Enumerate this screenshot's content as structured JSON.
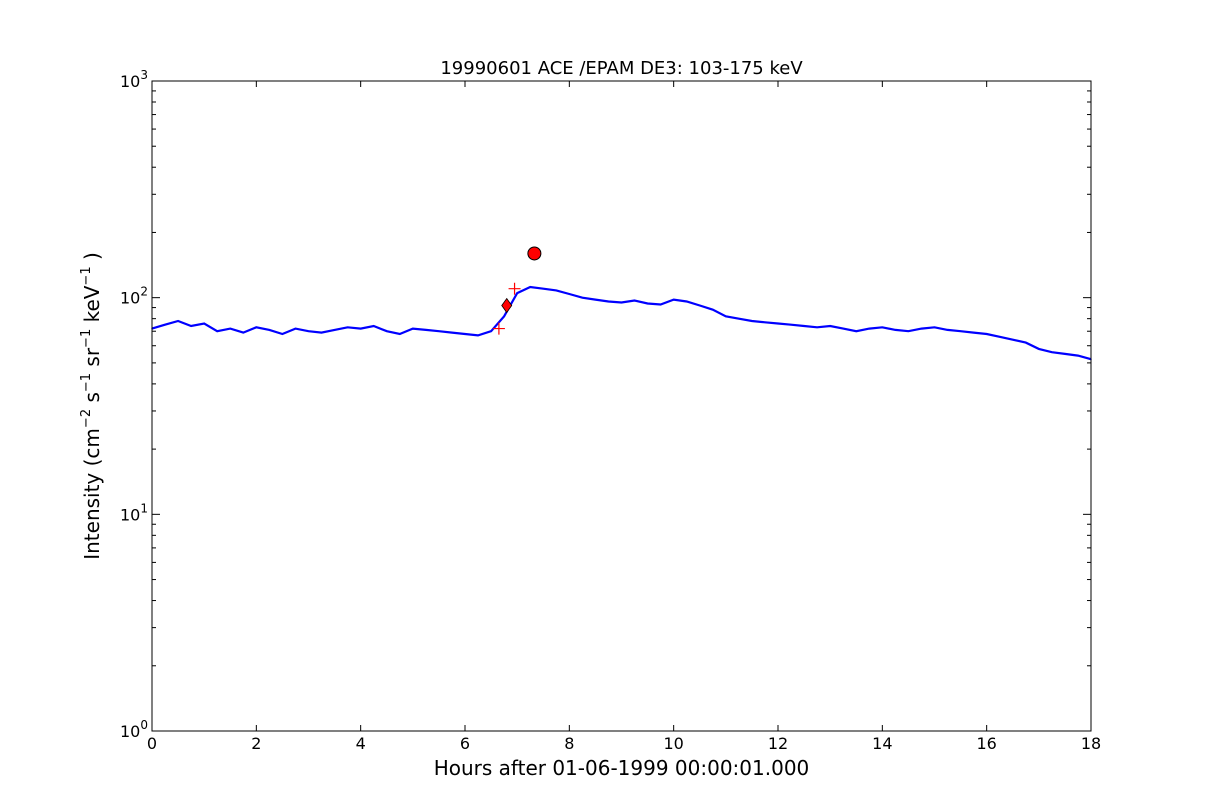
{
  "chart_data": {
    "type": "line",
    "title": "19990601 ACE /EPAM DE3: 103-175 keV",
    "xlabel": "Hours after 01-06-1999 00:00:01.000",
    "ylabel_parts": [
      "Intensity (cm",
      "−2",
      " s",
      "−1",
      " sr",
      "−1",
      " keV",
      "−1",
      " )"
    ],
    "xlim": [
      0,
      18
    ],
    "ylim": [
      1,
      1000
    ],
    "yscale": "log",
    "grid": false,
    "legend": "none",
    "x_ticks": [
      0,
      2,
      4,
      6,
      8,
      10,
      12,
      14,
      16,
      18
    ],
    "x_tick_labels": [
      "0",
      "2",
      "4",
      "6",
      "8",
      "10",
      "12",
      "14",
      "16",
      "18"
    ],
    "y_ticks": [
      1,
      10,
      100,
      1000
    ],
    "y_tick_labels": [
      {
        "base": "10",
        "exp": "0"
      },
      {
        "base": "10",
        "exp": "1"
      },
      {
        "base": "10",
        "exp": "2"
      },
      {
        "base": "10",
        "exp": "3"
      }
    ],
    "series": [
      {
        "color": "#000000",
        "style": "raw",
        "x": [
          0.0,
          0.25,
          0.5,
          0.75,
          1.0,
          1.25,
          1.5,
          1.75,
          2.0,
          2.25,
          2.5,
          2.75,
          3.0,
          3.25,
          3.5,
          3.75,
          4.0,
          4.25,
          4.5,
          4.75,
          5.0,
          5.25,
          5.5,
          5.75,
          6.0,
          6.25,
          6.5,
          6.75,
          7.0,
          7.25,
          7.5,
          7.75,
          8.0,
          8.25,
          8.5,
          8.75,
          9.0,
          9.25,
          9.5,
          9.75,
          10.0,
          10.25,
          10.5,
          10.75,
          11.0,
          11.25,
          11.5,
          11.75,
          12.0,
          12.25,
          12.5,
          12.75,
          13.0,
          13.25,
          13.5,
          13.75,
          14.0,
          14.25,
          14.5,
          14.75,
          15.0,
          15.25,
          15.5,
          15.75,
          16.0,
          16.25,
          16.5,
          16.75,
          17.0,
          17.25,
          17.5,
          17.75,
          18.0
        ],
        "y": [
          72,
          75,
          78,
          74,
          76,
          70,
          72,
          69,
          73,
          71,
          68,
          72,
          70,
          69,
          71,
          73,
          72,
          74,
          70,
          68,
          72,
          71,
          70,
          69,
          68,
          67,
          70,
          82,
          105,
          112,
          110,
          108,
          104,
          100,
          98,
          96,
          95,
          97,
          94,
          93,
          98,
          96,
          92,
          88,
          82,
          80,
          78,
          77,
          76,
          75,
          74,
          73,
          74,
          72,
          70,
          72,
          73,
          71,
          70,
          72,
          73,
          71,
          70,
          69,
          68,
          66,
          64,
          62,
          58,
          56,
          55,
          54,
          52
        ]
      },
      {
        "color": "#0000ff",
        "style": "smoothed",
        "x": [
          0.0,
          0.25,
          0.5,
          0.75,
          1.0,
          1.25,
          1.5,
          1.75,
          2.0,
          2.25,
          2.5,
          2.75,
          3.0,
          3.25,
          3.5,
          3.75,
          4.0,
          4.25,
          4.5,
          4.75,
          5.0,
          5.25,
          5.5,
          5.75,
          6.0,
          6.25,
          6.5,
          6.75,
          7.0,
          7.25,
          7.5,
          7.75,
          8.0,
          8.25,
          8.5,
          8.75,
          9.0,
          9.25,
          9.5,
          9.75,
          10.0,
          10.25,
          10.5,
          10.75,
          11.0,
          11.25,
          11.5,
          11.75,
          12.0,
          12.25,
          12.5,
          12.75,
          13.0,
          13.25,
          13.5,
          13.75,
          14.0,
          14.25,
          14.5,
          14.75,
          15.0,
          15.25,
          15.5,
          15.75,
          16.0,
          16.25,
          16.5,
          16.75,
          17.0,
          17.25,
          17.5,
          17.75,
          18.0
        ],
        "y": [
          72,
          75,
          78,
          74,
          76,
          70,
          72,
          69,
          73,
          71,
          68,
          72,
          70,
          69,
          71,
          73,
          72,
          74,
          70,
          68,
          72,
          71,
          70,
          69,
          68,
          67,
          70,
          82,
          105,
          112,
          110,
          108,
          104,
          100,
          98,
          96,
          95,
          97,
          94,
          93,
          98,
          96,
          92,
          88,
          82,
          80,
          78,
          77,
          76,
          75,
          74,
          73,
          74,
          72,
          70,
          72,
          73,
          71,
          70,
          72,
          73,
          71,
          70,
          69,
          68,
          66,
          64,
          62,
          58,
          56,
          55,
          54,
          52
        ]
      }
    ],
    "markers": [
      {
        "shape": "circle",
        "x": 7.33,
        "y": 160,
        "color": "#ff0000"
      },
      {
        "shape": "diamond",
        "x": 6.8,
        "y": 92,
        "color": "#ff0000"
      },
      {
        "shape": "plus",
        "x": 6.65,
        "y": 72,
        "color": "#ff0000"
      },
      {
        "shape": "plus",
        "x": 6.95,
        "y": 110,
        "color": "#ff0000"
      }
    ]
  }
}
